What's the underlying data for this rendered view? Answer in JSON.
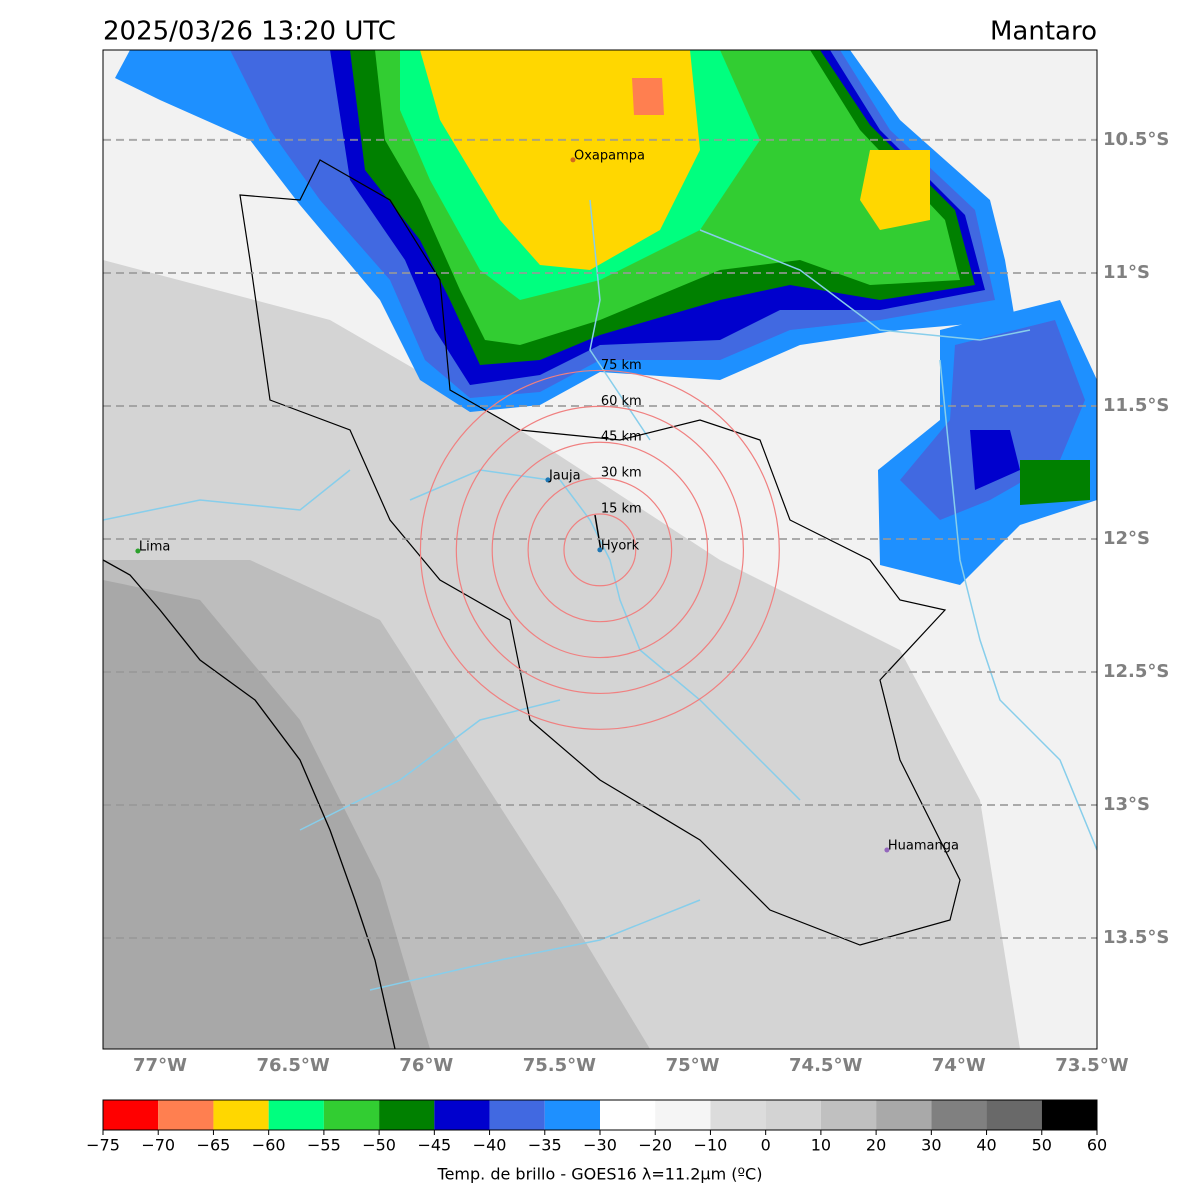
{
  "title": "2025/03/26 13:20 UTC",
  "region": "Mantaro",
  "map": {
    "type": "map",
    "xlim": [
      -77.214,
      -73.481
    ],
    "ylim": [
      -13.917,
      -10.162
    ],
    "xticks": [
      {
        "value": -77,
        "label": "77°W"
      },
      {
        "value": -76.5,
        "label": "76.5°W"
      },
      {
        "value": -76,
        "label": "76°W"
      },
      {
        "value": -75.5,
        "label": "75.5°W"
      },
      {
        "value": -75,
        "label": "75°W"
      },
      {
        "value": -74.5,
        "label": "74.5°W"
      },
      {
        "value": -74,
        "label": "74°W"
      },
      {
        "value": -73.5,
        "label": "73.5°W"
      }
    ],
    "yticks": [
      {
        "value": -10.5,
        "label": "10.5°S"
      },
      {
        "value": -11,
        "label": "11°S"
      },
      {
        "value": -11.5,
        "label": "11.5°S"
      },
      {
        "value": -12,
        "label": "12°S"
      },
      {
        "value": -12.5,
        "label": "12.5°S"
      },
      {
        "value": -13,
        "label": "13°S"
      },
      {
        "value": -13.5,
        "label": "13.5°S"
      }
    ],
    "grid": true,
    "places": [
      {
        "name": "Oxapampa",
        "lon": -75.449,
        "lat": -10.575,
        "color": "#d2691e"
      },
      {
        "name": "Jauja",
        "lon": -75.543,
        "lat": -11.778,
        "color": "#1f77b4"
      },
      {
        "name": "Hyork",
        "lon": -75.348,
        "lat": -12.041,
        "color": "#1f77b4"
      },
      {
        "name": "Lima",
        "lon": -77.083,
        "lat": -12.045,
        "color": "#2ca02c"
      },
      {
        "name": "Huamanga",
        "lon": -74.27,
        "lat": -13.169,
        "color": "#9467bd"
      }
    ],
    "rings": [
      {
        "value": 15,
        "label": "15 km"
      },
      {
        "value": 30,
        "label": "30 km"
      },
      {
        "value": 45,
        "label": "45 km"
      },
      {
        "value": 60,
        "label": "60 km"
      },
      {
        "value": 75,
        "label": "75 km"
      }
    ],
    "ring_color": "#f08080"
  },
  "colorbar": {
    "label": "Temp. de brillo - GOES16 λ=11.2μm (ºC)",
    "boundaries": [
      {
        "value": -75,
        "label": "−75"
      },
      {
        "value": -70,
        "label": "−70"
      },
      {
        "value": -65,
        "label": "−65"
      },
      {
        "value": -60,
        "label": "−60"
      },
      {
        "value": -55,
        "label": "−55"
      },
      {
        "value": -50,
        "label": "−50"
      },
      {
        "value": -45,
        "label": "−45"
      },
      {
        "value": -40,
        "label": "−40"
      },
      {
        "value": -35,
        "label": "−35"
      },
      {
        "value": -30,
        "label": "−30"
      },
      {
        "value": -20,
        "label": "−20"
      },
      {
        "value": -10,
        "label": "−10"
      },
      0,
      10,
      20,
      30,
      40,
      50,
      60
    ],
    "colors": [
      "#ff0000",
      "#ff7f50",
      "#ffd700",
      "#00ff7f",
      "#32cd32",
      "#008000",
      "#0000cd",
      "#4169e1",
      "#1e90ff",
      "#ffffff",
      "#f5f5f5",
      "#dcdcdc",
      "#d3d3d3",
      "#c0c0c0",
      "#a9a9a9",
      "#808080",
      "#696969",
      "#000000"
    ]
  }
}
